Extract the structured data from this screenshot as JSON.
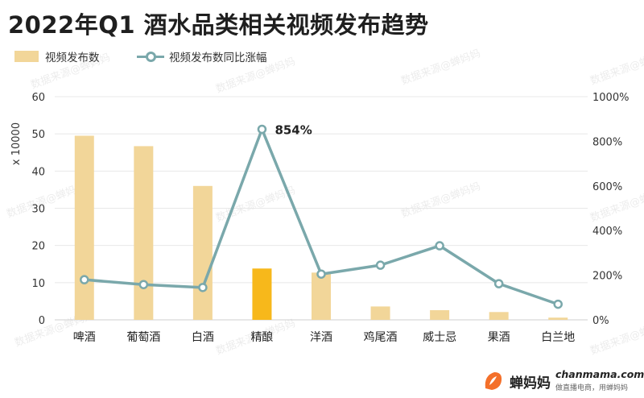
{
  "title": "2022年Q1 酒水品类相关视频发布趋势",
  "legend": {
    "bar_label": "视频发布数",
    "line_label": "视频发布数同比涨幅"
  },
  "watermark": "数据来源@蝉妈妈",
  "brand": {
    "name": "蝉妈妈",
    "url": "chanmama.com",
    "tagline": "做直播电商，用蝉妈妈"
  },
  "colors": {
    "bar": "#f2d699",
    "bar_highlight": "#f7b81b",
    "line": "#7aa8ab",
    "axis_text": "#333333",
    "brand_orange": "#f4702a"
  },
  "chart_data": {
    "type": "bar",
    "categories": [
      "啤酒",
      "葡萄酒",
      "白酒",
      "精酿",
      "洋酒",
      "鸡尾酒",
      "威士忌",
      "果酒",
      "白兰地"
    ],
    "highlight_category": "精酿",
    "ylabel": "x 10000",
    "ylim": [
      0,
      60
    ],
    "yticks": [
      0,
      10,
      20,
      30,
      40,
      50,
      60
    ],
    "y2lim": [
      0,
      1000
    ],
    "y2ticks": [
      "0%",
      "200%",
      "400%",
      "600%",
      "800%",
      "1000%"
    ],
    "y2tick_values": [
      0,
      200,
      400,
      600,
      800,
      1000
    ],
    "grid": true,
    "legend_position": "top-left",
    "series": [
      {
        "name": "视频发布数",
        "type": "bar",
        "axis": "left",
        "values": [
          49.5,
          46.7,
          36.0,
          13.8,
          12.7,
          3.6,
          2.6,
          2.1,
          0.6
        ]
      },
      {
        "name": "视频发布数同比涨幅",
        "type": "line",
        "axis": "right",
        "values": [
          180,
          158,
          145,
          854,
          205,
          245,
          332,
          162,
          70
        ]
      }
    ],
    "annotations": [
      {
        "category": "精酿",
        "text": "854%"
      }
    ]
  }
}
